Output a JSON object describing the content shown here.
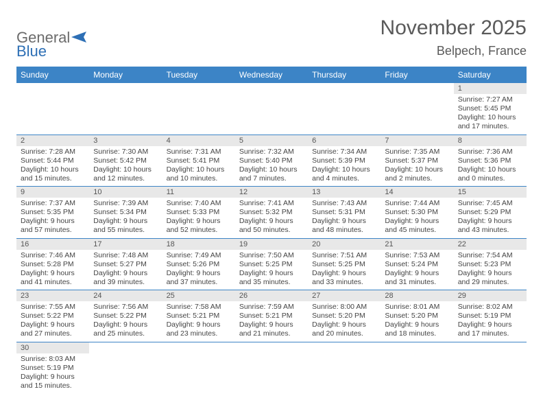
{
  "brand": {
    "general": "General",
    "blue": "Blue"
  },
  "title": "November 2025",
  "location": "Belpech, France",
  "colors": {
    "header_bg": "#3c84c6",
    "header_text": "#ffffff",
    "daynum_bg": "#e8e8e8",
    "border": "#3c84c6",
    "logo_grey": "#6b6b6b",
    "logo_blue": "#2d6fb5",
    "title_color": "#5a5a5a"
  },
  "columns": [
    "Sunday",
    "Monday",
    "Tuesday",
    "Wednesday",
    "Thursday",
    "Friday",
    "Saturday"
  ],
  "weeks": [
    [
      {
        "blank": true
      },
      {
        "blank": true
      },
      {
        "blank": true
      },
      {
        "blank": true
      },
      {
        "blank": true
      },
      {
        "blank": true
      },
      {
        "d": "1",
        "sr": "Sunrise: 7:27 AM",
        "ss": "Sunset: 5:45 PM",
        "dl1": "Daylight: 10 hours",
        "dl2": "and 17 minutes."
      }
    ],
    [
      {
        "d": "2",
        "sr": "Sunrise: 7:28 AM",
        "ss": "Sunset: 5:44 PM",
        "dl1": "Daylight: 10 hours",
        "dl2": "and 15 minutes."
      },
      {
        "d": "3",
        "sr": "Sunrise: 7:30 AM",
        "ss": "Sunset: 5:42 PM",
        "dl1": "Daylight: 10 hours",
        "dl2": "and 12 minutes."
      },
      {
        "d": "4",
        "sr": "Sunrise: 7:31 AM",
        "ss": "Sunset: 5:41 PM",
        "dl1": "Daylight: 10 hours",
        "dl2": "and 10 minutes."
      },
      {
        "d": "5",
        "sr": "Sunrise: 7:32 AM",
        "ss": "Sunset: 5:40 PM",
        "dl1": "Daylight: 10 hours",
        "dl2": "and 7 minutes."
      },
      {
        "d": "6",
        "sr": "Sunrise: 7:34 AM",
        "ss": "Sunset: 5:39 PM",
        "dl1": "Daylight: 10 hours",
        "dl2": "and 4 minutes."
      },
      {
        "d": "7",
        "sr": "Sunrise: 7:35 AM",
        "ss": "Sunset: 5:37 PM",
        "dl1": "Daylight: 10 hours",
        "dl2": "and 2 minutes."
      },
      {
        "d": "8",
        "sr": "Sunrise: 7:36 AM",
        "ss": "Sunset: 5:36 PM",
        "dl1": "Daylight: 10 hours",
        "dl2": "and 0 minutes."
      }
    ],
    [
      {
        "d": "9",
        "sr": "Sunrise: 7:37 AM",
        "ss": "Sunset: 5:35 PM",
        "dl1": "Daylight: 9 hours",
        "dl2": "and 57 minutes."
      },
      {
        "d": "10",
        "sr": "Sunrise: 7:39 AM",
        "ss": "Sunset: 5:34 PM",
        "dl1": "Daylight: 9 hours",
        "dl2": "and 55 minutes."
      },
      {
        "d": "11",
        "sr": "Sunrise: 7:40 AM",
        "ss": "Sunset: 5:33 PM",
        "dl1": "Daylight: 9 hours",
        "dl2": "and 52 minutes."
      },
      {
        "d": "12",
        "sr": "Sunrise: 7:41 AM",
        "ss": "Sunset: 5:32 PM",
        "dl1": "Daylight: 9 hours",
        "dl2": "and 50 minutes."
      },
      {
        "d": "13",
        "sr": "Sunrise: 7:43 AM",
        "ss": "Sunset: 5:31 PM",
        "dl1": "Daylight: 9 hours",
        "dl2": "and 48 minutes."
      },
      {
        "d": "14",
        "sr": "Sunrise: 7:44 AM",
        "ss": "Sunset: 5:30 PM",
        "dl1": "Daylight: 9 hours",
        "dl2": "and 45 minutes."
      },
      {
        "d": "15",
        "sr": "Sunrise: 7:45 AM",
        "ss": "Sunset: 5:29 PM",
        "dl1": "Daylight: 9 hours",
        "dl2": "and 43 minutes."
      }
    ],
    [
      {
        "d": "16",
        "sr": "Sunrise: 7:46 AM",
        "ss": "Sunset: 5:28 PM",
        "dl1": "Daylight: 9 hours",
        "dl2": "and 41 minutes."
      },
      {
        "d": "17",
        "sr": "Sunrise: 7:48 AM",
        "ss": "Sunset: 5:27 PM",
        "dl1": "Daylight: 9 hours",
        "dl2": "and 39 minutes."
      },
      {
        "d": "18",
        "sr": "Sunrise: 7:49 AM",
        "ss": "Sunset: 5:26 PM",
        "dl1": "Daylight: 9 hours",
        "dl2": "and 37 minutes."
      },
      {
        "d": "19",
        "sr": "Sunrise: 7:50 AM",
        "ss": "Sunset: 5:25 PM",
        "dl1": "Daylight: 9 hours",
        "dl2": "and 35 minutes."
      },
      {
        "d": "20",
        "sr": "Sunrise: 7:51 AM",
        "ss": "Sunset: 5:25 PM",
        "dl1": "Daylight: 9 hours",
        "dl2": "and 33 minutes."
      },
      {
        "d": "21",
        "sr": "Sunrise: 7:53 AM",
        "ss": "Sunset: 5:24 PM",
        "dl1": "Daylight: 9 hours",
        "dl2": "and 31 minutes."
      },
      {
        "d": "22",
        "sr": "Sunrise: 7:54 AM",
        "ss": "Sunset: 5:23 PM",
        "dl1": "Daylight: 9 hours",
        "dl2": "and 29 minutes."
      }
    ],
    [
      {
        "d": "23",
        "sr": "Sunrise: 7:55 AM",
        "ss": "Sunset: 5:22 PM",
        "dl1": "Daylight: 9 hours",
        "dl2": "and 27 minutes."
      },
      {
        "d": "24",
        "sr": "Sunrise: 7:56 AM",
        "ss": "Sunset: 5:22 PM",
        "dl1": "Daylight: 9 hours",
        "dl2": "and 25 minutes."
      },
      {
        "d": "25",
        "sr": "Sunrise: 7:58 AM",
        "ss": "Sunset: 5:21 PM",
        "dl1": "Daylight: 9 hours",
        "dl2": "and 23 minutes."
      },
      {
        "d": "26",
        "sr": "Sunrise: 7:59 AM",
        "ss": "Sunset: 5:21 PM",
        "dl1": "Daylight: 9 hours",
        "dl2": "and 21 minutes."
      },
      {
        "d": "27",
        "sr": "Sunrise: 8:00 AM",
        "ss": "Sunset: 5:20 PM",
        "dl1": "Daylight: 9 hours",
        "dl2": "and 20 minutes."
      },
      {
        "d": "28",
        "sr": "Sunrise: 8:01 AM",
        "ss": "Sunset: 5:20 PM",
        "dl1": "Daylight: 9 hours",
        "dl2": "and 18 minutes."
      },
      {
        "d": "29",
        "sr": "Sunrise: 8:02 AM",
        "ss": "Sunset: 5:19 PM",
        "dl1": "Daylight: 9 hours",
        "dl2": "and 17 minutes."
      }
    ],
    [
      {
        "d": "30",
        "sr": "Sunrise: 8:03 AM",
        "ss": "Sunset: 5:19 PM",
        "dl1": "Daylight: 9 hours",
        "dl2": "and 15 minutes."
      },
      {
        "blank": true
      },
      {
        "blank": true
      },
      {
        "blank": true
      },
      {
        "blank": true
      },
      {
        "blank": true
      },
      {
        "blank": true
      }
    ]
  ]
}
